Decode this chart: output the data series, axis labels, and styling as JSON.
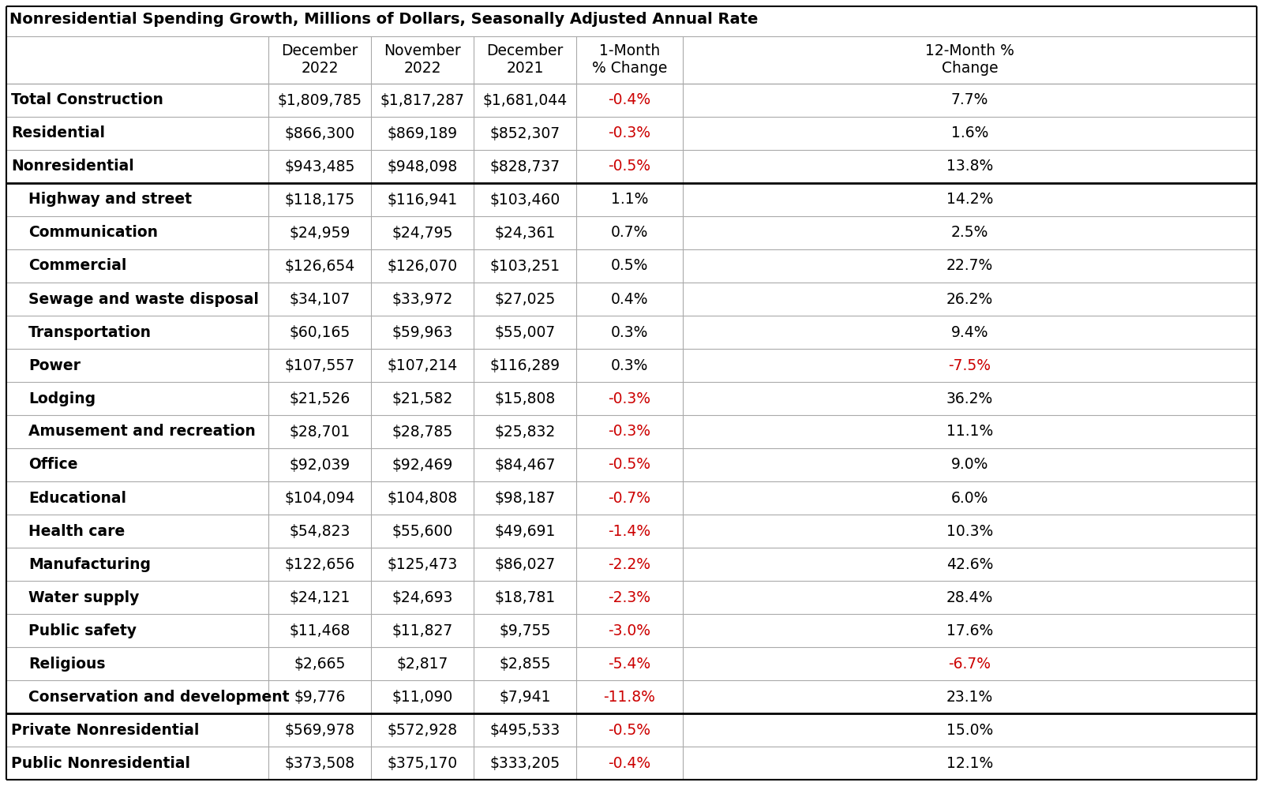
{
  "title": "Nonresidential Spending Growth, Millions of Dollars, Seasonally Adjusted Annual Rate",
  "col_headers": [
    "",
    "December\n2022",
    "November\n2022",
    "December\n2021",
    "1-Month\n% Change",
    "12-Month %\nChange"
  ],
  "rows": [
    {
      "label": "Total Construction",
      "dec2022": "$1,809,785",
      "nov2022": "$1,817,287",
      "dec2021": "$1,681,044",
      "change1m": "-0.4%",
      "change12m": "7.7%",
      "change1m_red": true,
      "change12m_red": false,
      "indent": false,
      "bottom_thick": false
    },
    {
      "label": "Residential",
      "dec2022": "$866,300",
      "nov2022": "$869,189",
      "dec2021": "$852,307",
      "change1m": "-0.3%",
      "change12m": "1.6%",
      "change1m_red": true,
      "change12m_red": false,
      "indent": false,
      "bottom_thick": false
    },
    {
      "label": "Nonresidential",
      "dec2022": "$943,485",
      "nov2022": "$948,098",
      "dec2021": "$828,737",
      "change1m": "-0.5%",
      "change12m": "13.8%",
      "change1m_red": true,
      "change12m_red": false,
      "indent": false,
      "bottom_thick": true
    },
    {
      "label": "Highway and street",
      "dec2022": "$118,175",
      "nov2022": "$116,941",
      "dec2021": "$103,460",
      "change1m": "1.1%",
      "change12m": "14.2%",
      "change1m_red": false,
      "change12m_red": false,
      "indent": true,
      "bottom_thick": false
    },
    {
      "label": "Communication",
      "dec2022": "$24,959",
      "nov2022": "$24,795",
      "dec2021": "$24,361",
      "change1m": "0.7%",
      "change12m": "2.5%",
      "change1m_red": false,
      "change12m_red": false,
      "indent": true,
      "bottom_thick": false
    },
    {
      "label": "Commercial",
      "dec2022": "$126,654",
      "nov2022": "$126,070",
      "dec2021": "$103,251",
      "change1m": "0.5%",
      "change12m": "22.7%",
      "change1m_red": false,
      "change12m_red": false,
      "indent": true,
      "bottom_thick": false
    },
    {
      "label": "Sewage and waste disposal",
      "dec2022": "$34,107",
      "nov2022": "$33,972",
      "dec2021": "$27,025",
      "change1m": "0.4%",
      "change12m": "26.2%",
      "change1m_red": false,
      "change12m_red": false,
      "indent": true,
      "bottom_thick": false
    },
    {
      "label": "Transportation",
      "dec2022": "$60,165",
      "nov2022": "$59,963",
      "dec2021": "$55,007",
      "change1m": "0.3%",
      "change12m": "9.4%",
      "change1m_red": false,
      "change12m_red": false,
      "indent": true,
      "bottom_thick": false
    },
    {
      "label": "Power",
      "dec2022": "$107,557",
      "nov2022": "$107,214",
      "dec2021": "$116,289",
      "change1m": "0.3%",
      "change12m": "-7.5%",
      "change1m_red": false,
      "change12m_red": true,
      "indent": true,
      "bottom_thick": false
    },
    {
      "label": "Lodging",
      "dec2022": "$21,526",
      "nov2022": "$21,582",
      "dec2021": "$15,808",
      "change1m": "-0.3%",
      "change12m": "36.2%",
      "change1m_red": true,
      "change12m_red": false,
      "indent": true,
      "bottom_thick": false
    },
    {
      "label": "Amusement and recreation",
      "dec2022": "$28,701",
      "nov2022": "$28,785",
      "dec2021": "$25,832",
      "change1m": "-0.3%",
      "change12m": "11.1%",
      "change1m_red": true,
      "change12m_red": false,
      "indent": true,
      "bottom_thick": false
    },
    {
      "label": "Office",
      "dec2022": "$92,039",
      "nov2022": "$92,469",
      "dec2021": "$84,467",
      "change1m": "-0.5%",
      "change12m": "9.0%",
      "change1m_red": true,
      "change12m_red": false,
      "indent": true,
      "bottom_thick": false
    },
    {
      "label": "Educational",
      "dec2022": "$104,094",
      "nov2022": "$104,808",
      "dec2021": "$98,187",
      "change1m": "-0.7%",
      "change12m": "6.0%",
      "change1m_red": true,
      "change12m_red": false,
      "indent": true,
      "bottom_thick": false
    },
    {
      "label": "Health care",
      "dec2022": "$54,823",
      "nov2022": "$55,600",
      "dec2021": "$49,691",
      "change1m": "-1.4%",
      "change12m": "10.3%",
      "change1m_red": true,
      "change12m_red": false,
      "indent": true,
      "bottom_thick": false
    },
    {
      "label": "Manufacturing",
      "dec2022": "$122,656",
      "nov2022": "$125,473",
      "dec2021": "$86,027",
      "change1m": "-2.2%",
      "change12m": "42.6%",
      "change1m_red": true,
      "change12m_red": false,
      "indent": true,
      "bottom_thick": false
    },
    {
      "label": "Water supply",
      "dec2022": "$24,121",
      "nov2022": "$24,693",
      "dec2021": "$18,781",
      "change1m": "-2.3%",
      "change12m": "28.4%",
      "change1m_red": true,
      "change12m_red": false,
      "indent": true,
      "bottom_thick": false
    },
    {
      "label": "Public safety",
      "dec2022": "$11,468",
      "nov2022": "$11,827",
      "dec2021": "$9,755",
      "change1m": "-3.0%",
      "change12m": "17.6%",
      "change1m_red": true,
      "change12m_red": false,
      "indent": true,
      "bottom_thick": false
    },
    {
      "label": "Religious",
      "dec2022": "$2,665",
      "nov2022": "$2,817",
      "dec2021": "$2,855",
      "change1m": "-5.4%",
      "change12m": "-6.7%",
      "change1m_red": true,
      "change12m_red": true,
      "indent": true,
      "bottom_thick": false
    },
    {
      "label": "Conservation and development",
      "dec2022": "$9,776",
      "nov2022": "$11,090",
      "dec2021": "$7,941",
      "change1m": "-11.8%",
      "change12m": "23.1%",
      "change1m_red": true,
      "change12m_red": false,
      "indent": true,
      "bottom_thick": true
    },
    {
      "label": "Private Nonresidential",
      "dec2022": "$569,978",
      "nov2022": "$572,928",
      "dec2021": "$495,533",
      "change1m": "-0.5%",
      "change12m": "15.0%",
      "change1m_red": true,
      "change12m_red": false,
      "indent": false,
      "bottom_thick": false
    },
    {
      "label": "Public Nonresidential",
      "dec2022": "$373,508",
      "nov2022": "$375,170",
      "dec2021": "$333,205",
      "change1m": "-0.4%",
      "change12m": "12.1%",
      "change1m_red": true,
      "change12m_red": false,
      "indent": false,
      "bottom_thick": false
    }
  ],
  "bg_color": "#ffffff",
  "text_color": "#000000",
  "red_color": "#cc0000",
  "line_color_thin": "#aaaaaa",
  "line_color_thick": "#000000",
  "font_size": 13.5,
  "header_font_size": 13.5,
  "title_font_size": 14,
  "fig_width": 16.0,
  "fig_height": 9.96,
  "dpi": 100
}
